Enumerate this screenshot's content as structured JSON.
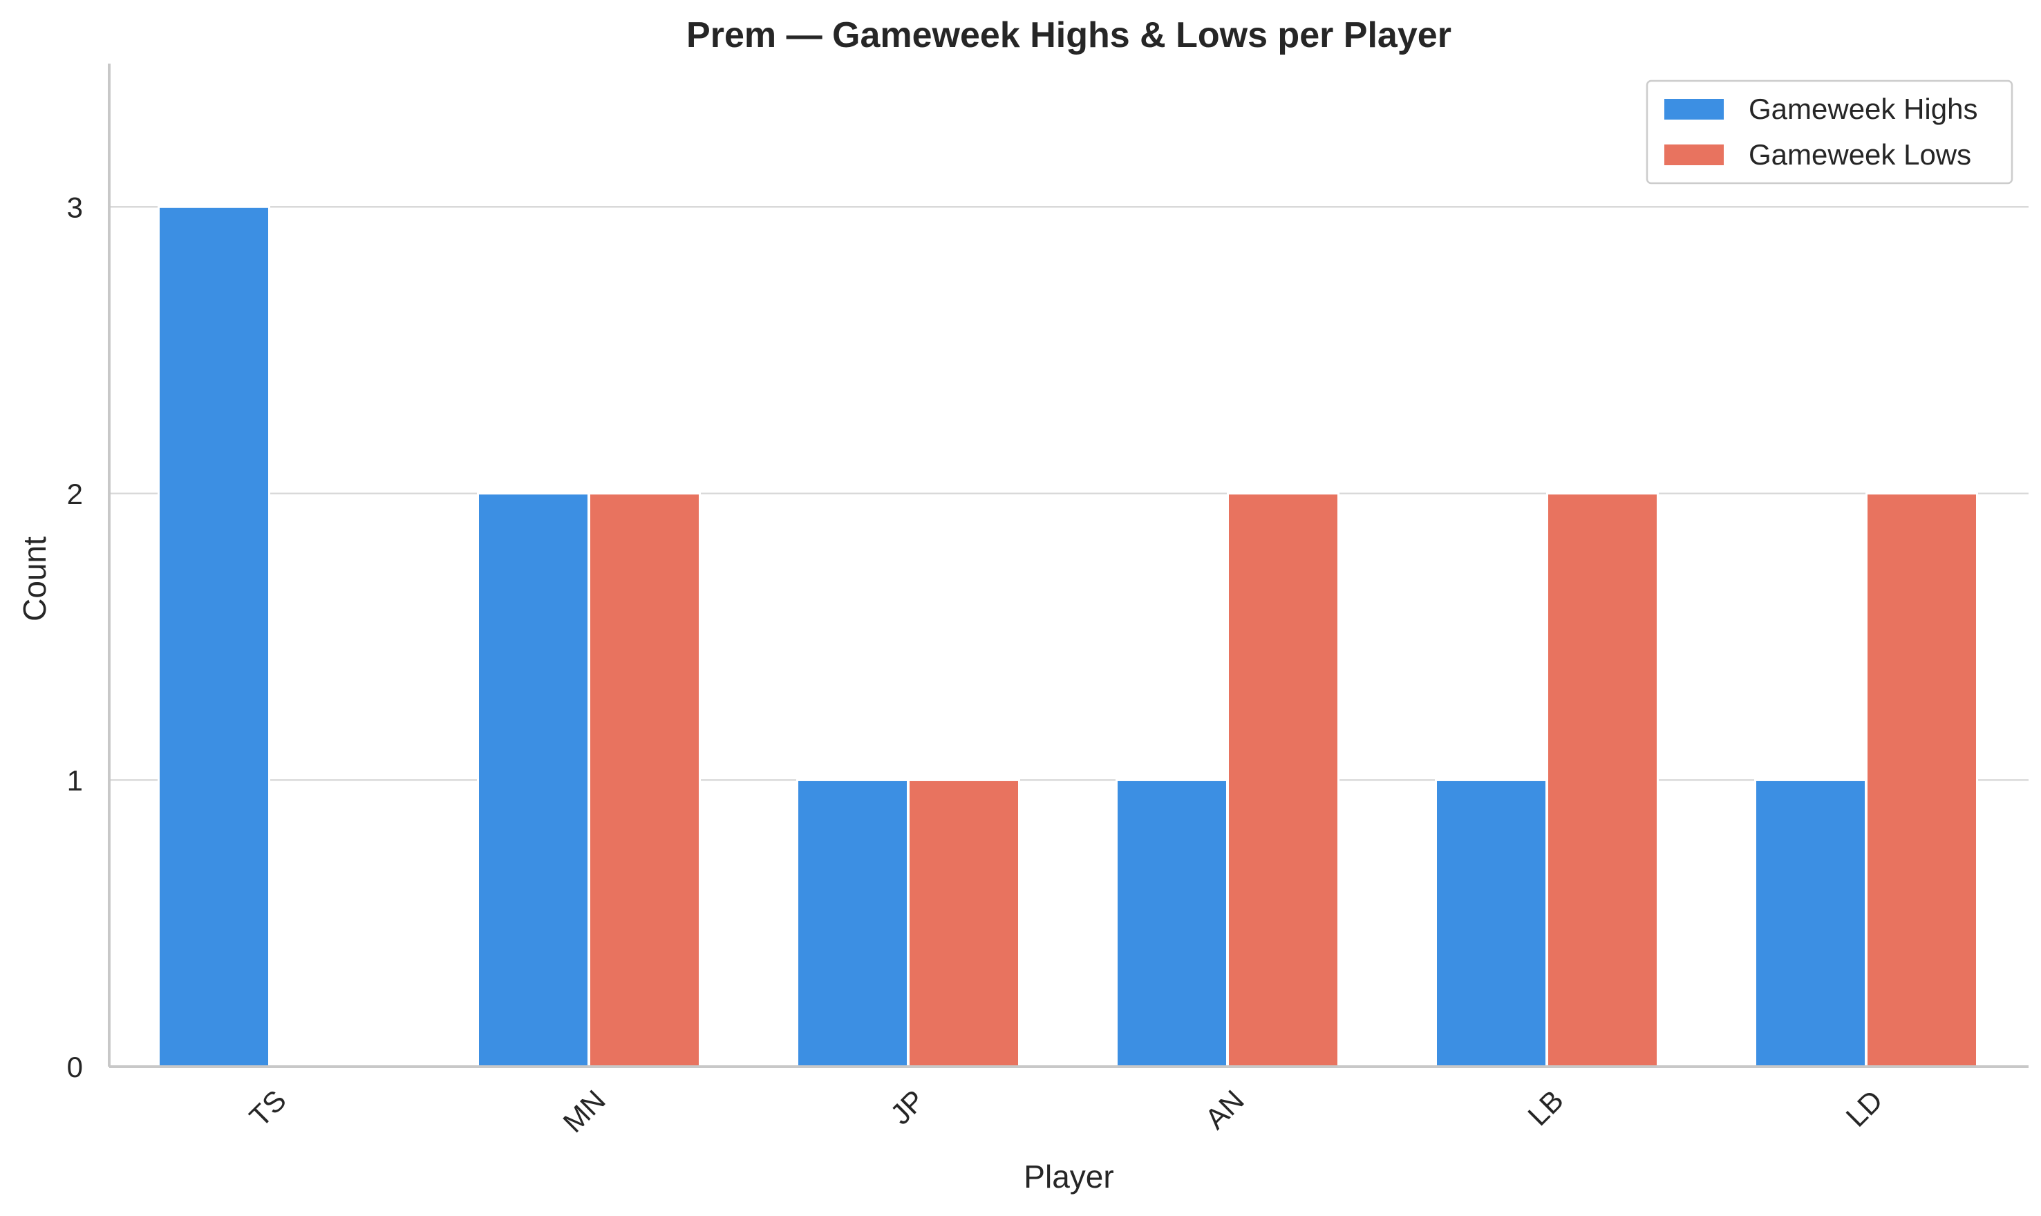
{
  "chart_data": {
    "type": "bar",
    "title": "Prem — Gameweek Highs & Lows per Player",
    "xlabel": "Player",
    "ylabel": "Count",
    "categories": [
      "TS",
      "MN",
      "JP",
      "AN",
      "LB",
      "LD"
    ],
    "series": [
      {
        "name": "Gameweek Highs",
        "values": [
          3,
          2,
          1,
          1,
          1,
          1
        ],
        "color": "#3c8fe3"
      },
      {
        "name": "Gameweek Lows",
        "values": [
          0,
          2,
          1,
          2,
          2,
          2
        ],
        "color": "#e8735f"
      }
    ],
    "ylim": [
      0,
      3.5
    ],
    "yticks": [
      0,
      1,
      2,
      3
    ],
    "grid": "horizontal",
    "legend_position": "top-right"
  }
}
